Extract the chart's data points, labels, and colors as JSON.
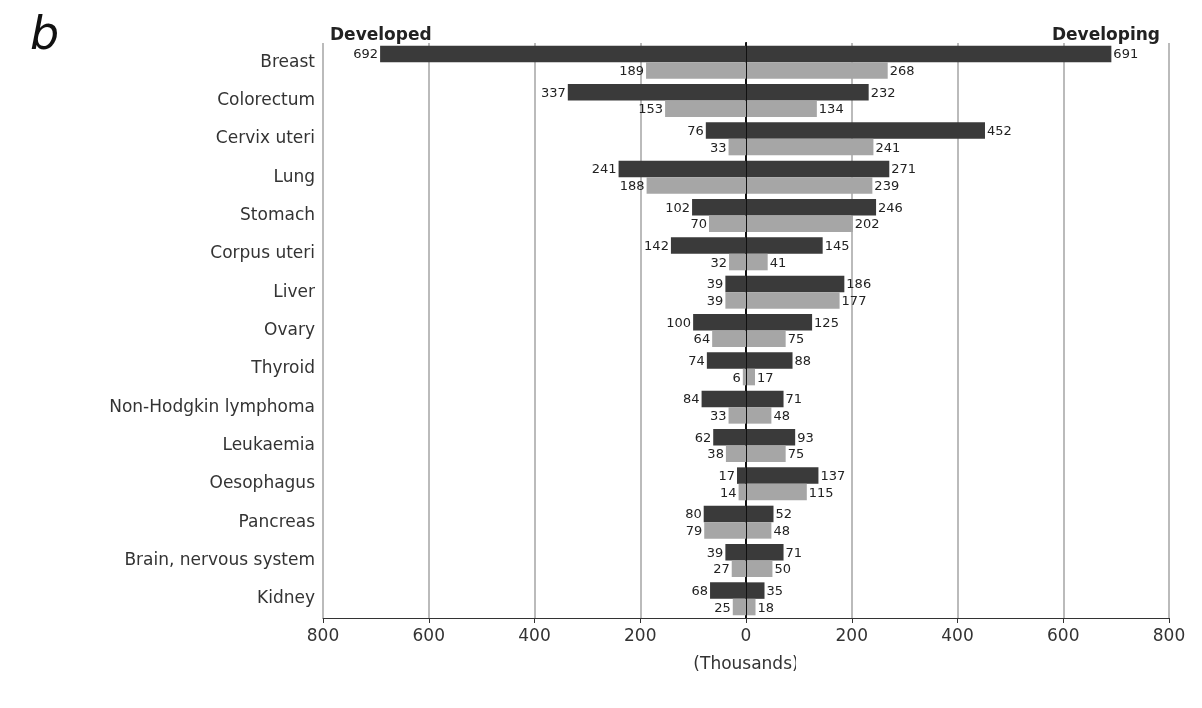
{
  "chart_data": [
    {
      "type": "bar",
      "orientation": "horizontal",
      "title": "Developed",
      "xlabel": "(Thousands)",
      "annotations": [
        "b"
      ],
      "categories": [
        "Breast",
        "Colorectum",
        "Cervix uteri",
        "Lung",
        "Stomach",
        "Corpus uteri",
        "Liver",
        "Ovary",
        "Thyroid",
        "Non-Hodgkin lymphoma",
        "Leukaemia",
        "Oesophagus",
        "Pancreas",
        "Brain, nervous system",
        "Kidney"
      ],
      "series": [
        {
          "color": "#3a3a3a",
          "values": [
            692,
            337,
            76,
            241,
            102,
            142,
            39,
            100,
            74,
            84,
            62,
            17,
            80,
            39,
            68
          ]
        },
        {
          "color": "#a6a6a6",
          "values": [
            189,
            153,
            33,
            188,
            70,
            32,
            39,
            64,
            6,
            33,
            38,
            14,
            79,
            27,
            25
          ]
        }
      ],
      "xlim": [
        800,
        0
      ],
      "xticks": [
        800,
        600,
        400,
        200,
        0
      ],
      "grid": "x",
      "data_labels": true
    },
    {
      "type": "bar",
      "orientation": "horizontal",
      "title": "Developing",
      "categories": [
        null,
        null,
        null,
        null,
        null,
        null,
        null,
        null,
        null,
        null,
        null,
        null,
        null,
        null,
        null
      ],
      "series": [
        {
          "color": "#3a3a3a",
          "values": [
            691,
            232,
            452,
            271,
            246,
            145,
            186,
            125,
            88,
            71,
            93,
            137,
            52,
            71,
            35
          ]
        },
        {
          "color": "#a6a6a6",
          "values": [
            268,
            134,
            241,
            239,
            202,
            41,
            177,
            75,
            17,
            48,
            75,
            115,
            48,
            50,
            18
          ]
        }
      ],
      "xlim": [
        0,
        800
      ],
      "xticks": [
        {
          "value": 0,
          "label": null
        },
        200,
        400,
        600,
        800
      ],
      "grid": "x",
      "data_labels": true
    }
  ]
}
